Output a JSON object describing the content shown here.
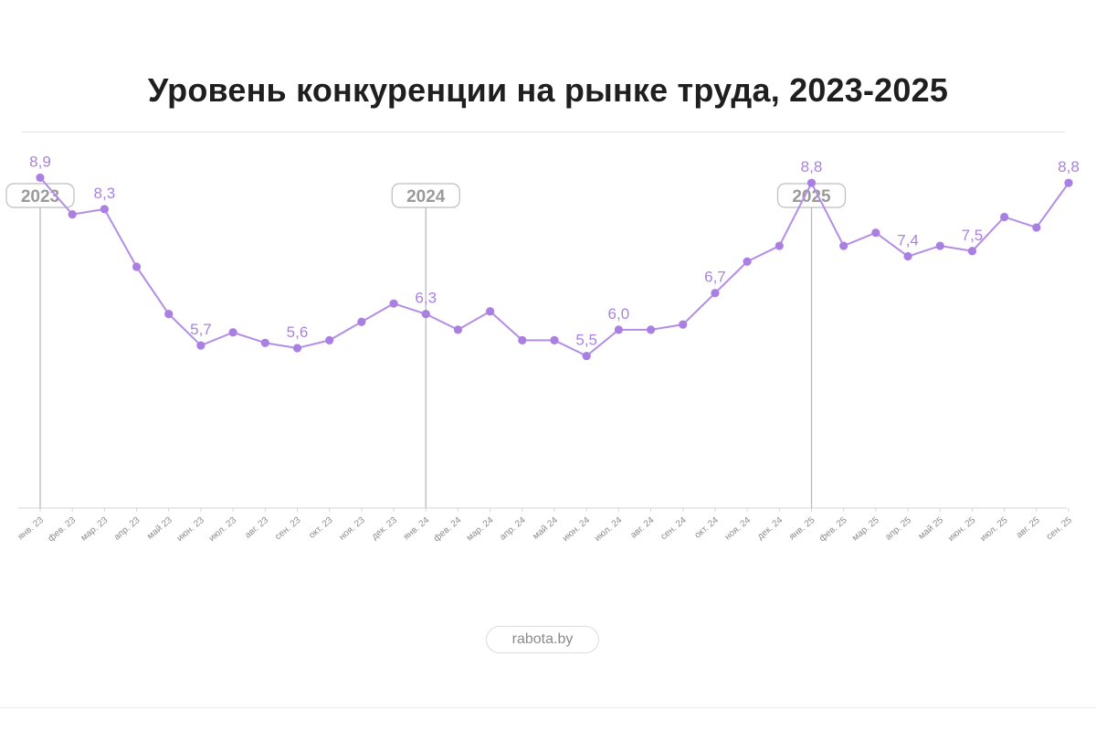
{
  "title": "Уровень конкуренции на рынке труда, 2023-2025",
  "source": "rabota.by",
  "colors": {
    "line": "#b48de6",
    "point": "#a97fe2",
    "label": "#a983de",
    "axis": "#d6d6d6",
    "tick_text": "#8c8c8c",
    "year_marker": "#b5b5b5"
  },
  "chart_data": {
    "type": "line",
    "title": "Уровень конкуренции на рынке труда, 2023-2025",
    "xlabel": "",
    "ylabel": "",
    "grid": false,
    "categories": [
      "янв. 23",
      "фев. 23",
      "мар. 23",
      "апр. 23",
      "май 23",
      "июн. 23",
      "июл. 23",
      "авг. 23",
      "сен. 23",
      "окт. 23",
      "ноя. 23",
      "дек. 23",
      "янв. 24",
      "фев. 24",
      "мар. 24",
      "апр. 24",
      "май 24",
      "июн. 24",
      "июл. 24",
      "авг. 24",
      "сен. 24",
      "окт. 24",
      "ноя. 24",
      "дек. 24",
      "янв. 25",
      "фев. 25",
      "мар. 25",
      "апр. 25",
      "май 25",
      "июн. 25",
      "июл. 25",
      "авг. 25",
      "сен. 25"
    ],
    "series": [
      {
        "values": [
          8.9,
          8.2,
          8.3,
          7.2,
          6.3,
          5.7,
          5.95,
          5.75,
          5.65,
          5.8,
          6.15,
          6.5,
          6.3,
          6.0,
          6.35,
          5.8,
          5.8,
          5.5,
          6.0,
          6.0,
          6.1,
          6.7,
          7.3,
          7.6,
          8.8,
          7.6,
          7.85,
          7.4,
          7.6,
          7.5,
          8.15,
          7.95,
          8.8
        ]
      }
    ],
    "data_labels": [
      {
        "index": 0,
        "text": "8,9"
      },
      {
        "index": 2,
        "text": "8,3"
      },
      {
        "index": 5,
        "text": "5,7"
      },
      {
        "index": 8,
        "text": "5,6"
      },
      {
        "index": 12,
        "text": "6,3"
      },
      {
        "index": 17,
        "text": "5,5"
      },
      {
        "index": 18,
        "text": "6,0"
      },
      {
        "index": 21,
        "text": "6,7"
      },
      {
        "index": 24,
        "text": "8,8"
      },
      {
        "index": 27,
        "text": "7,4"
      },
      {
        "index": 29,
        "text": "7,5"
      },
      {
        "index": 32,
        "text": "8,8"
      }
    ],
    "year_markers": [
      {
        "index": 0,
        "label": "2023"
      },
      {
        "index": 12,
        "label": "2024"
      },
      {
        "index": 24,
        "label": "2025"
      }
    ],
    "ylim": [
      2.6,
      9.5
    ]
  }
}
